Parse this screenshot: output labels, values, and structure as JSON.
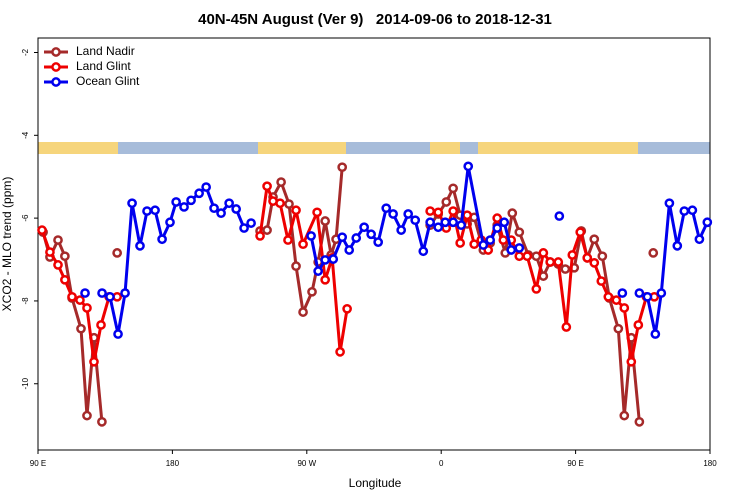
{
  "chart_data": {
    "type": "line",
    "title": "40N-45N August (Ver 9)   2014-09-06 to 2018-12-31",
    "x_label": "Longitude",
    "y_label": "XCO2 - MLO trend (ppm)",
    "xlim": [
      -270,
      180
    ],
    "ylim": [
      -11.6,
      -1.65
    ],
    "xticks": [
      {
        "value": -270,
        "label": "90 E"
      },
      {
        "value": -180,
        "label": "180"
      },
      {
        "value": -90,
        "label": "90 W"
      },
      0,
      {
        "value": 90,
        "label": "90 E"
      },
      180
    ],
    "yticks": [
      -10,
      -8,
      -6,
      -4,
      -2
    ],
    "legend": "top-left",
    "series": [
      {
        "name": "Land Nadir",
        "color": "#a52a2a",
        "x": [
          -266.6,
          -262,
          -256.6,
          -252,
          -247.2,
          -241.2,
          -237.2,
          -232.5,
          -227.2,
          null,
          -217,
          null,
          -121.3,
          -116.6,
          -112.6,
          -107.2,
          -101.9,
          -97.2,
          -92.5,
          -86.5,
          -82.4,
          -77.7,
          -73.7,
          -70.4,
          -66.3,
          null,
          -7.4,
          -2,
          3.4,
          8,
          12.7,
          17.4,
          22.1,
          28.2,
          32.8,
          37.5,
          42.9,
          47.6,
          52.3,
          58.3,
          63.7,
          68.4,
          73,
          78.4,
          83.1,
          89.1,
          93.8,
          97.8,
          102.5,
          107.9,
          112.6,
          118.6,
          122.6,
          127.3,
          132.7,
          null,
          142
        ],
        "values": [
          -6.34,
          -6.94,
          -6.53,
          -6.92,
          -7.93,
          -8.67,
          -10.77,
          -8.89,
          -10.92,
          null,
          -6.84,
          null,
          -6.31,
          -6.29,
          -5.49,
          -5.13,
          -5.66,
          -7.16,
          -8.27,
          -7.78,
          -7.06,
          -6.07,
          -6.89,
          -6.51,
          -4.77,
          null,
          -6.17,
          -5.9,
          -5.61,
          -5.28,
          -5.93,
          -6.14,
          -5.98,
          -6.77,
          -6.6,
          -6.17,
          -6.84,
          -5.88,
          -6.34,
          -6.89,
          -6.92,
          -7.4,
          -7.06,
          -7.11,
          -7.23,
          -7.2,
          -6.31,
          -6.96,
          -6.51,
          -6.92,
          -7.93,
          -8.67,
          -10.77,
          -8.89,
          -10.92,
          null,
          -6.84
        ]
      },
      {
        "name": "Land Glint",
        "color": "#ee0000",
        "x": [
          -267.3,
          -262,
          -256.6,
          -252,
          -247.2,
          -241.9,
          -237.2,
          -232.5,
          -227.8,
          -222.4,
          -217,
          null,
          -121.3,
          -116.6,
          -112.6,
          -107.9,
          -102.6,
          -97.2,
          -92.5,
          -83.1,
          -77.7,
          -73,
          -67.7,
          -63,
          null,
          -7.4,
          -2,
          3.4,
          8,
          12.7,
          17.4,
          22.1,
          26.8,
          31.5,
          37.5,
          41.6,
          46.9,
          52.3,
          57.6,
          63.7,
          68.4,
          73,
          78.4,
          83.8,
          87.8,
          93.1,
          97.8,
          102.5,
          107.2,
          111.9,
          117.3,
          122.6,
          127.3,
          132,
          137.4,
          142.7
        ],
        "values": [
          -6.29,
          -6.82,
          -7.13,
          -7.49,
          -7.9,
          -7.98,
          -8.17,
          -9.47,
          -8.58,
          -7.9,
          -7.9,
          null,
          -6.43,
          -5.23,
          -5.59,
          -5.64,
          -6.53,
          -5.81,
          -6.63,
          -5.86,
          -7.49,
          -6.96,
          -9.23,
          -8.19,
          null,
          -5.83,
          -5.86,
          -6.24,
          -5.83,
          -6.6,
          -5.93,
          -6.63,
          -6.53,
          -6.77,
          -6,
          -6.53,
          -6.53,
          -6.92,
          -6.92,
          -7.71,
          -6.84,
          -7.06,
          -7.06,
          -8.63,
          -6.89,
          -6.34,
          -6.96,
          -7.08,
          -7.52,
          -7.9,
          -7.98,
          -8.17,
          -9.47,
          -8.58,
          -7.9,
          -7.9
        ]
      },
      {
        "name": "Ocean Glint",
        "color": "#0000ee",
        "x": [
          -238.5,
          null,
          -227.1,
          -221.8,
          -216.4,
          -211.7,
          -207,
          -201.7,
          -197,
          -191.6,
          -186.9,
          -181.6,
          -177.5,
          -172.2,
          -167.5,
          -162.1,
          -157.4,
          -152.1,
          -147.4,
          -142,
          -137.3,
          -132,
          -127.3,
          null,
          -87.1,
          -82.4,
          -77.7,
          -72.3,
          -66.3,
          -61.6,
          -56.9,
          -51.6,
          -46.9,
          -42.2,
          -36.8,
          -32.2,
          -26.8,
          -22.1,
          -17.4,
          -12,
          -7.4,
          -2,
          2.7,
          8,
          13.4,
          18.1,
          28.2,
          32.8,
          37.5,
          42.2,
          46.9,
          52.3,
          null,
          79.1,
          null,
          121.3,
          null,
          132.7,
          138.1,
          143.4,
          147.4,
          152.8,
          158.1,
          162.8,
          168.2,
          172.9,
          178.2
        ],
        "values": [
          -7.81,
          null,
          -7.81,
          -7.9,
          -8.8,
          -7.81,
          -5.64,
          -6.67,
          -5.83,
          -5.81,
          -6.51,
          -6.1,
          -5.61,
          -5.73,
          -5.57,
          -5.4,
          -5.25,
          -5.76,
          -5.88,
          -5.64,
          -5.78,
          -6.24,
          -6.12,
          null,
          -6.43,
          -7.28,
          -7.01,
          -6.99,
          -6.46,
          -6.77,
          -6.48,
          -6.22,
          -6.39,
          -6.58,
          -5.76,
          -5.9,
          -6.29,
          -5.9,
          -6.05,
          -6.8,
          -6.1,
          -6.22,
          -6.1,
          -6.1,
          -6.17,
          -4.75,
          -6.65,
          -6.53,
          -6.24,
          -6.1,
          -6.77,
          -6.72,
          null,
          -5.95,
          null,
          -7.81,
          null,
          -7.81,
          -7.9,
          -8.8,
          -7.81,
          -5.64,
          -6.67,
          -5.83,
          -5.81,
          -6.51,
          -6.1
        ]
      }
    ]
  }
}
